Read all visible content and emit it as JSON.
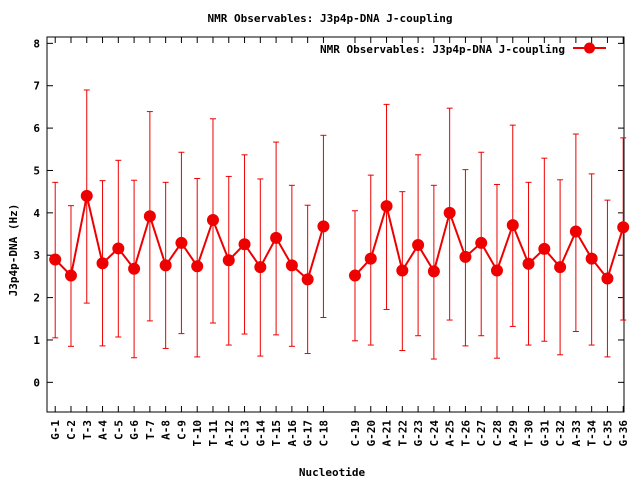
{
  "chart_data": {
    "type": "line",
    "title": "NMR Observables: J3p4p-DNA J-coupling",
    "xlabel": "Nucleotide",
    "ylabel": "J3p4p-DNA (Hz)",
    "ylim": [
      -0.7,
      8.15
    ],
    "yticks": [
      0,
      1,
      2,
      3,
      4,
      5,
      6,
      7,
      8
    ],
    "grid": false,
    "legend_position": "top-right",
    "colors": {
      "series": "#ee0000",
      "axis": "#000000",
      "background": "#ffffff"
    },
    "series": [
      {
        "name": "NMR Observables: J3p4p-DNA J-coupling",
        "segments": [
          {
            "x": [
              1,
              2,
              3,
              4,
              5,
              6,
              7,
              8,
              9,
              10,
              11,
              12,
              13,
              14,
              15,
              16,
              17,
              18
            ],
            "labels": [
              "G-1",
              "C-2",
              "T-3",
              "A-4",
              "C-5",
              "G-6",
              "T-7",
              "A-8",
              "C-9",
              "T-10",
              "T-11",
              "A-12",
              "C-13",
              "G-14",
              "T-15",
              "A-16",
              "G-17",
              "C-18"
            ],
            "y": [
              2.9,
              2.52,
              4.4,
              2.81,
              3.16,
              2.68,
              3.92,
              2.76,
              3.29,
              2.74,
              3.83,
              2.88,
              3.26,
              2.72,
              3.41,
              2.76,
              2.43,
              3.68
            ],
            "ylow": [
              1.05,
              0.85,
              1.87,
              0.86,
              1.07,
              0.58,
              1.45,
              0.8,
              1.15,
              0.6,
              1.4,
              0.88,
              1.14,
              0.62,
              1.12,
              0.85,
              0.68,
              1.53
            ],
            "yhigh": [
              4.72,
              4.17,
              6.9,
              4.76,
              5.24,
              4.77,
              6.39,
              4.72,
              5.43,
              4.81,
              6.22,
              4.86,
              5.37,
              4.8,
              5.67,
              4.65,
              4.18,
              5.83
            ]
          },
          {
            "x": [
              20,
              21,
              22,
              23,
              24,
              25,
              26,
              27,
              28,
              29,
              30,
              31,
              32,
              33,
              34,
              35,
              36,
              37
            ],
            "labels": [
              "C-19",
              "G-20",
              "A-21",
              "T-22",
              "G-23",
              "C-24",
              "A-25",
              "T-26",
              "C-27",
              "C-28",
              "A-29",
              "T-30",
              "G-31",
              "C-32",
              "A-33",
              "T-34",
              "C-35",
              "G-36"
            ],
            "y": [
              2.52,
              2.92,
              4.16,
              2.64,
              3.24,
              2.62,
              4.0,
              2.96,
              3.29,
              2.64,
              3.71,
              2.8,
              3.15,
              2.72,
              3.56,
              2.92,
              2.45,
              3.66
            ],
            "ylow": [
              0.98,
              0.88,
              1.72,
              0.75,
              1.1,
              0.55,
              1.47,
              0.86,
              1.1,
              0.57,
              1.32,
              0.88,
              0.97,
              0.65,
              1.2,
              0.88,
              0.6,
              1.47
            ],
            "yhigh": [
              4.05,
              4.89,
              6.56,
              4.5,
              5.37,
              4.65,
              6.47,
              5.02,
              5.43,
              4.67,
              6.07,
              4.72,
              5.29,
              4.78,
              5.86,
              4.92,
              4.3,
              5.77
            ]
          }
        ]
      }
    ]
  }
}
